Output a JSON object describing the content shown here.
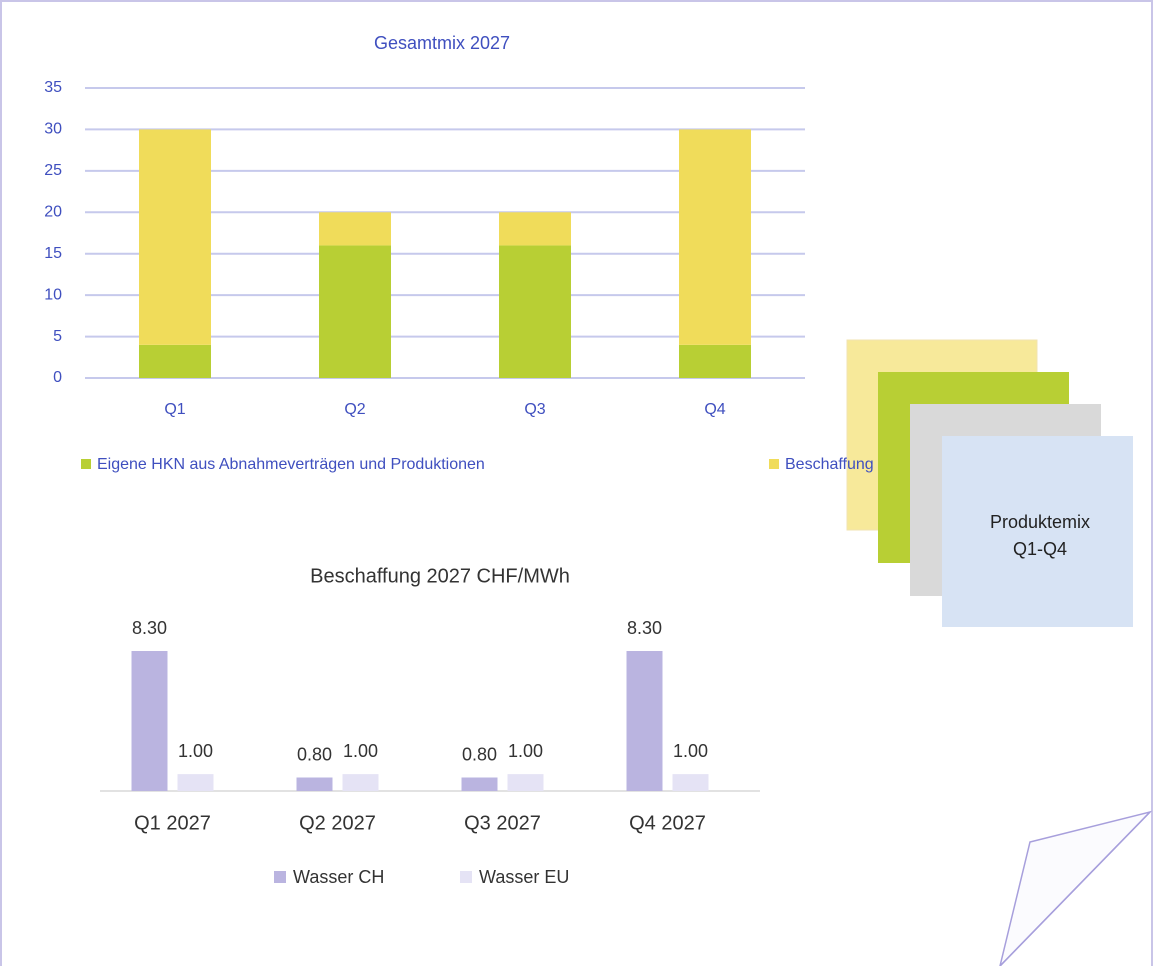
{
  "chart_data": [
    {
      "type": "stacked-bar",
      "title": "Gesamtmix 2027",
      "categories": [
        "Q1",
        "Q2",
        "Q3",
        "Q4"
      ],
      "series": [
        {
          "name": "Eigene HKN aus Abnahmeverträgen und Produktionen",
          "color": "#b8cf34",
          "values": [
            4,
            16,
            16,
            4
          ]
        },
        {
          "name": "Beschaffung",
          "color": "#f0dc5a",
          "values": [
            26,
            4,
            4,
            26
          ]
        }
      ],
      "ylim": [
        0,
        35
      ],
      "yticks": [
        0,
        5,
        10,
        15,
        20,
        25,
        30,
        35
      ],
      "grid": true,
      "legend": "bottom"
    },
    {
      "type": "grouped-bar",
      "title": "Beschaffung 2027 CHF/MWh",
      "categories": [
        "Q1 2027",
        "Q2 2027",
        "Q3 2027",
        "Q4 2027"
      ],
      "series": [
        {
          "name": "Wasser CH",
          "color": "#bab4e0",
          "values": [
            8.3,
            0.8,
            0.8,
            8.3
          ],
          "value_labels": [
            "8.30",
            "0.80",
            "0.80",
            "8.30"
          ]
        },
        {
          "name": "Wasser EU",
          "color": "#e5e3f5",
          "values": [
            1,
            1,
            1,
            1
          ],
          "value_labels": [
            "1.00",
            "1.00",
            "1.00",
            "1.00"
          ]
        }
      ],
      "legend": "bottom"
    }
  ],
  "note_box": {
    "lines": [
      "Produktemix",
      "Q1-Q4"
    ]
  }
}
